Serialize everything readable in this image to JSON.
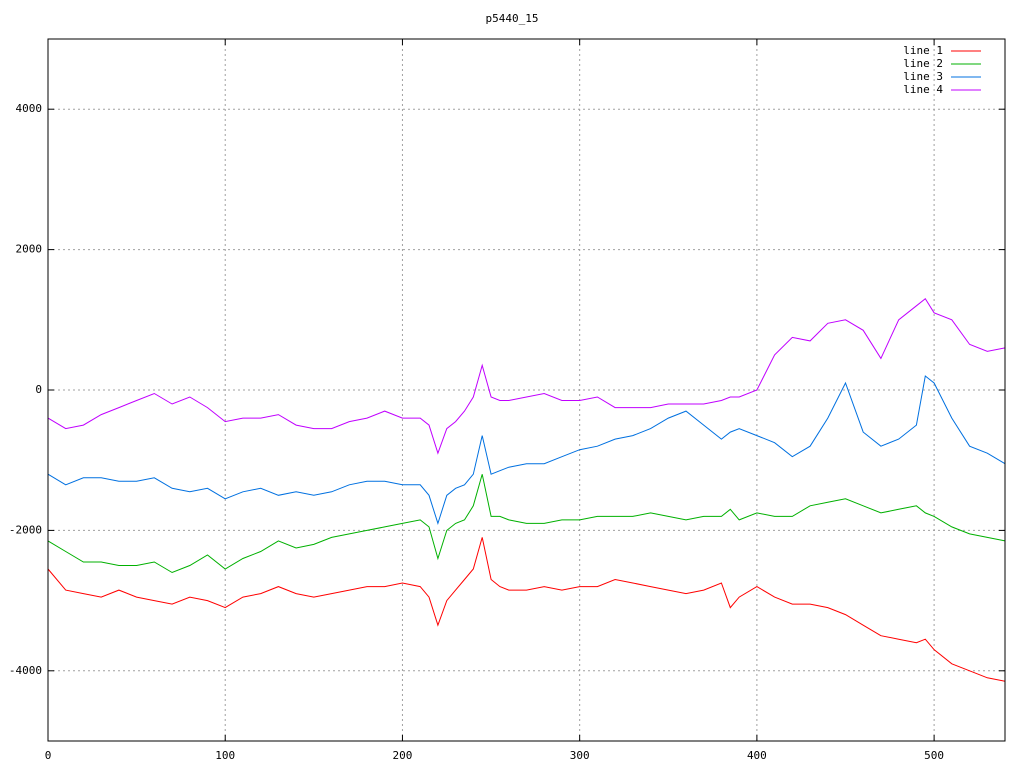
{
  "chart_data": {
    "type": "line",
    "title": "p5440_15",
    "x": [
      0,
      10,
      20,
      30,
      40,
      50,
      60,
      70,
      80,
      90,
      100,
      110,
      120,
      130,
      140,
      150,
      160,
      170,
      180,
      190,
      200,
      210,
      215,
      220,
      225,
      230,
      235,
      240,
      245,
      250,
      255,
      260,
      270,
      280,
      290,
      300,
      310,
      320,
      330,
      340,
      350,
      360,
      370,
      380,
      385,
      390,
      400,
      410,
      420,
      430,
      440,
      450,
      460,
      470,
      480,
      490,
      495,
      500,
      510,
      520,
      530,
      540
    ],
    "series": [
      {
        "name": "line 1",
        "color": "#ff0000",
        "values": [
          -2550,
          -2850,
          -2900,
          -2950,
          -2850,
          -2950,
          -3000,
          -3050,
          -2950,
          -3000,
          -3100,
          -2950,
          -2900,
          -2800,
          -2900,
          -2950,
          -2900,
          -2850,
          -2800,
          -2800,
          -2750,
          -2800,
          -2950,
          -3350,
          -3000,
          -2850,
          -2700,
          -2550,
          -2100,
          -2700,
          -2800,
          -2850,
          -2850,
          -2800,
          -2850,
          -2800,
          -2800,
          -2700,
          -2750,
          -2800,
          -2850,
          -2900,
          -2850,
          -2750,
          -3100,
          -2950,
          -2800,
          -2950,
          -3050,
          -3050,
          -3100,
          -3200,
          -3350,
          -3500,
          -3550,
          -3600,
          -3550,
          -3700,
          -3900,
          -4000,
          -4100,
          -4150
        ]
      },
      {
        "name": "line 2",
        "color": "#00b000",
        "values": [
          -2150,
          -2300,
          -2450,
          -2450,
          -2500,
          -2500,
          -2450,
          -2600,
          -2500,
          -2350,
          -2550,
          -2400,
          -2300,
          -2150,
          -2250,
          -2200,
          -2100,
          -2050,
          -2000,
          -1950,
          -1900,
          -1850,
          -1950,
          -2400,
          -2000,
          -1900,
          -1850,
          -1650,
          -1200,
          -1800,
          -1800,
          -1850,
          -1900,
          -1900,
          -1850,
          -1850,
          -1800,
          -1800,
          -1800,
          -1750,
          -1800,
          -1850,
          -1800,
          -1800,
          -1700,
          -1850,
          -1750,
          -1800,
          -1800,
          -1650,
          -1600,
          -1550,
          -1650,
          -1750,
          -1700,
          -1650,
          -1750,
          -1800,
          -1950,
          -2050,
          -2100,
          -2150
        ]
      },
      {
        "name": "line 3",
        "color": "#0070e0",
        "values": [
          -1200,
          -1350,
          -1250,
          -1250,
          -1300,
          -1300,
          -1250,
          -1400,
          -1450,
          -1400,
          -1550,
          -1450,
          -1400,
          -1500,
          -1450,
          -1500,
          -1450,
          -1350,
          -1300,
          -1300,
          -1350,
          -1350,
          -1500,
          -1900,
          -1500,
          -1400,
          -1350,
          -1200,
          -650,
          -1200,
          -1150,
          -1100,
          -1050,
          -1050,
          -950,
          -850,
          -800,
          -700,
          -650,
          -550,
          -400,
          -300,
          -500,
          -700,
          -600,
          -550,
          -650,
          -750,
          -950,
          -800,
          -400,
          100,
          -600,
          -800,
          -700,
          -500,
          200,
          100,
          -400,
          -800,
          -900,
          -1050
        ]
      },
      {
        "name": "line 4",
        "color": "#c000ff",
        "values": [
          -400,
          -550,
          -500,
          -350,
          -250,
          -150,
          -50,
          -200,
          -100,
          -250,
          -450,
          -400,
          -400,
          -350,
          -500,
          -550,
          -550,
          -450,
          -400,
          -300,
          -400,
          -400,
          -500,
          -900,
          -550,
          -450,
          -300,
          -100,
          350,
          -100,
          -150,
          -150,
          -100,
          -50,
          -150,
          -150,
          -100,
          -250,
          -250,
          -250,
          -200,
          -200,
          -200,
          -150,
          -100,
          -100,
          0,
          500,
          750,
          700,
          950,
          1000,
          850,
          450,
          1000,
          1200,
          1300,
          1100,
          1000,
          650,
          550,
          600
        ]
      }
    ],
    "xlim": [
      0,
      540
    ],
    "ylim": [
      -5000,
      5000
    ],
    "xticks": [
      0,
      100,
      200,
      300,
      400,
      500
    ],
    "yticks": [
      -4000,
      -2000,
      0,
      2000,
      4000
    ],
    "grid": true,
    "legend": "top-right"
  }
}
